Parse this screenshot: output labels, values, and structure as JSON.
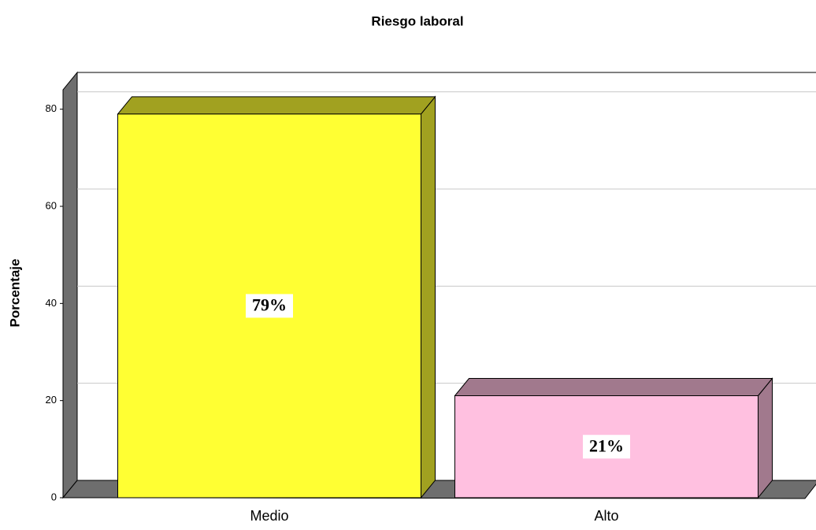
{
  "chart_data": {
    "type": "bar",
    "title": "Riesgo laboral",
    "y_label": "Porcentaje",
    "categories": [
      "Medio",
      "Alto"
    ],
    "values": [
      79,
      21
    ],
    "value_labels": [
      "79%",
      "21%"
    ],
    "colors": [
      "#ffff33",
      "#ffc0e0"
    ],
    "ylim": [
      0,
      84
    ],
    "yticks": [
      0,
      20,
      40,
      60,
      80
    ],
    "grid": true
  }
}
